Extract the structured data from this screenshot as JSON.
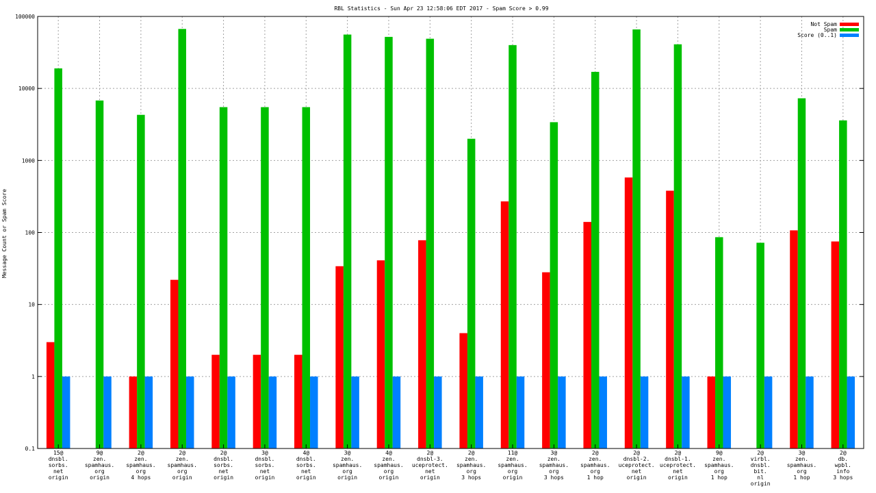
{
  "chart_data": {
    "type": "bar",
    "title": "RBL Statistics - Sun Apr 23 12:58:06 EDT 2017 - Spam Score > 0.99",
    "ylabel": "Message Count or Spam Score",
    "xlabel": "",
    "yscale": "log",
    "ylim": [
      0.1,
      100000
    ],
    "yticks": [
      "100000",
      "10000",
      "1000",
      "100",
      "10",
      "1",
      "0.1"
    ],
    "grid": true,
    "legend_position": "top-right",
    "categories": [
      [
        "15@",
        "dnsbl.",
        "sorbs.",
        "net",
        "origin"
      ],
      [
        "9@",
        "zen.",
        "spamhaus.",
        "org",
        "origin"
      ],
      [
        "2@",
        "zen.",
        "spamhaus.",
        "org",
        "4 hops"
      ],
      [
        "2@",
        "zen.",
        "spamhaus.",
        "org",
        "origin"
      ],
      [
        "2@",
        "dnsbl.",
        "sorbs.",
        "net",
        "origin"
      ],
      [
        "3@",
        "dnsbl.",
        "sorbs.",
        "net",
        "origin"
      ],
      [
        "4@",
        "dnsbl.",
        "sorbs.",
        "net",
        "origin"
      ],
      [
        "3@",
        "zen.",
        "spamhaus.",
        "org",
        "origin"
      ],
      [
        "4@",
        "zen.",
        "spamhaus.",
        "org",
        "origin"
      ],
      [
        "2@",
        "dnsbl-3.",
        "uceprotect.",
        "net",
        "origin"
      ],
      [
        "2@",
        "zen.",
        "spamhaus.",
        "org",
        "3 hops"
      ],
      [
        "11@",
        "zen.",
        "spamhaus.",
        "org",
        "origin"
      ],
      [
        "3@",
        "zen.",
        "spamhaus.",
        "org",
        "3 hops"
      ],
      [
        "2@",
        "zen.",
        "spamhaus.",
        "org",
        "1 hop"
      ],
      [
        "2@",
        "dnsbl-2.",
        "uceprotect.",
        "net",
        "origin"
      ],
      [
        "2@",
        "dnsbl-1.",
        "uceprotect.",
        "net",
        "origin"
      ],
      [
        "9@",
        "zen.",
        "spamhaus.",
        "org",
        "1 hop"
      ],
      [
        "2@",
        "virbl.",
        "dnsbl.",
        "bit.",
        "nl",
        "origin"
      ],
      [
        "3@",
        "zen.",
        "spamhaus.",
        "org",
        "1 hop"
      ],
      [
        "2@",
        "db.",
        "wpbl.",
        "info",
        "3 hops"
      ]
    ],
    "series": [
      {
        "name": "Not Spam",
        "color": "#ff0000",
        "values": [
          3,
          null,
          1,
          22,
          2,
          2,
          2,
          34,
          41,
          78,
          4,
          270,
          28,
          140,
          580,
          380,
          1,
          null,
          107,
          75
        ]
      },
      {
        "name": "Spam",
        "color": "#00c000",
        "values": [
          19000,
          6800,
          4300,
          67000,
          5500,
          5500,
          5500,
          56000,
          52000,
          49000,
          2000,
          40000,
          3400,
          17000,
          66000,
          41000,
          86,
          72,
          7300,
          3600
        ]
      },
      {
        "name": "Score (0..1)",
        "color": "#0080ff",
        "values": [
          1,
          1,
          1,
          1,
          1,
          1,
          1,
          1,
          1,
          1,
          1,
          1,
          1,
          1,
          1,
          1,
          1,
          1,
          1,
          1
        ]
      }
    ]
  }
}
